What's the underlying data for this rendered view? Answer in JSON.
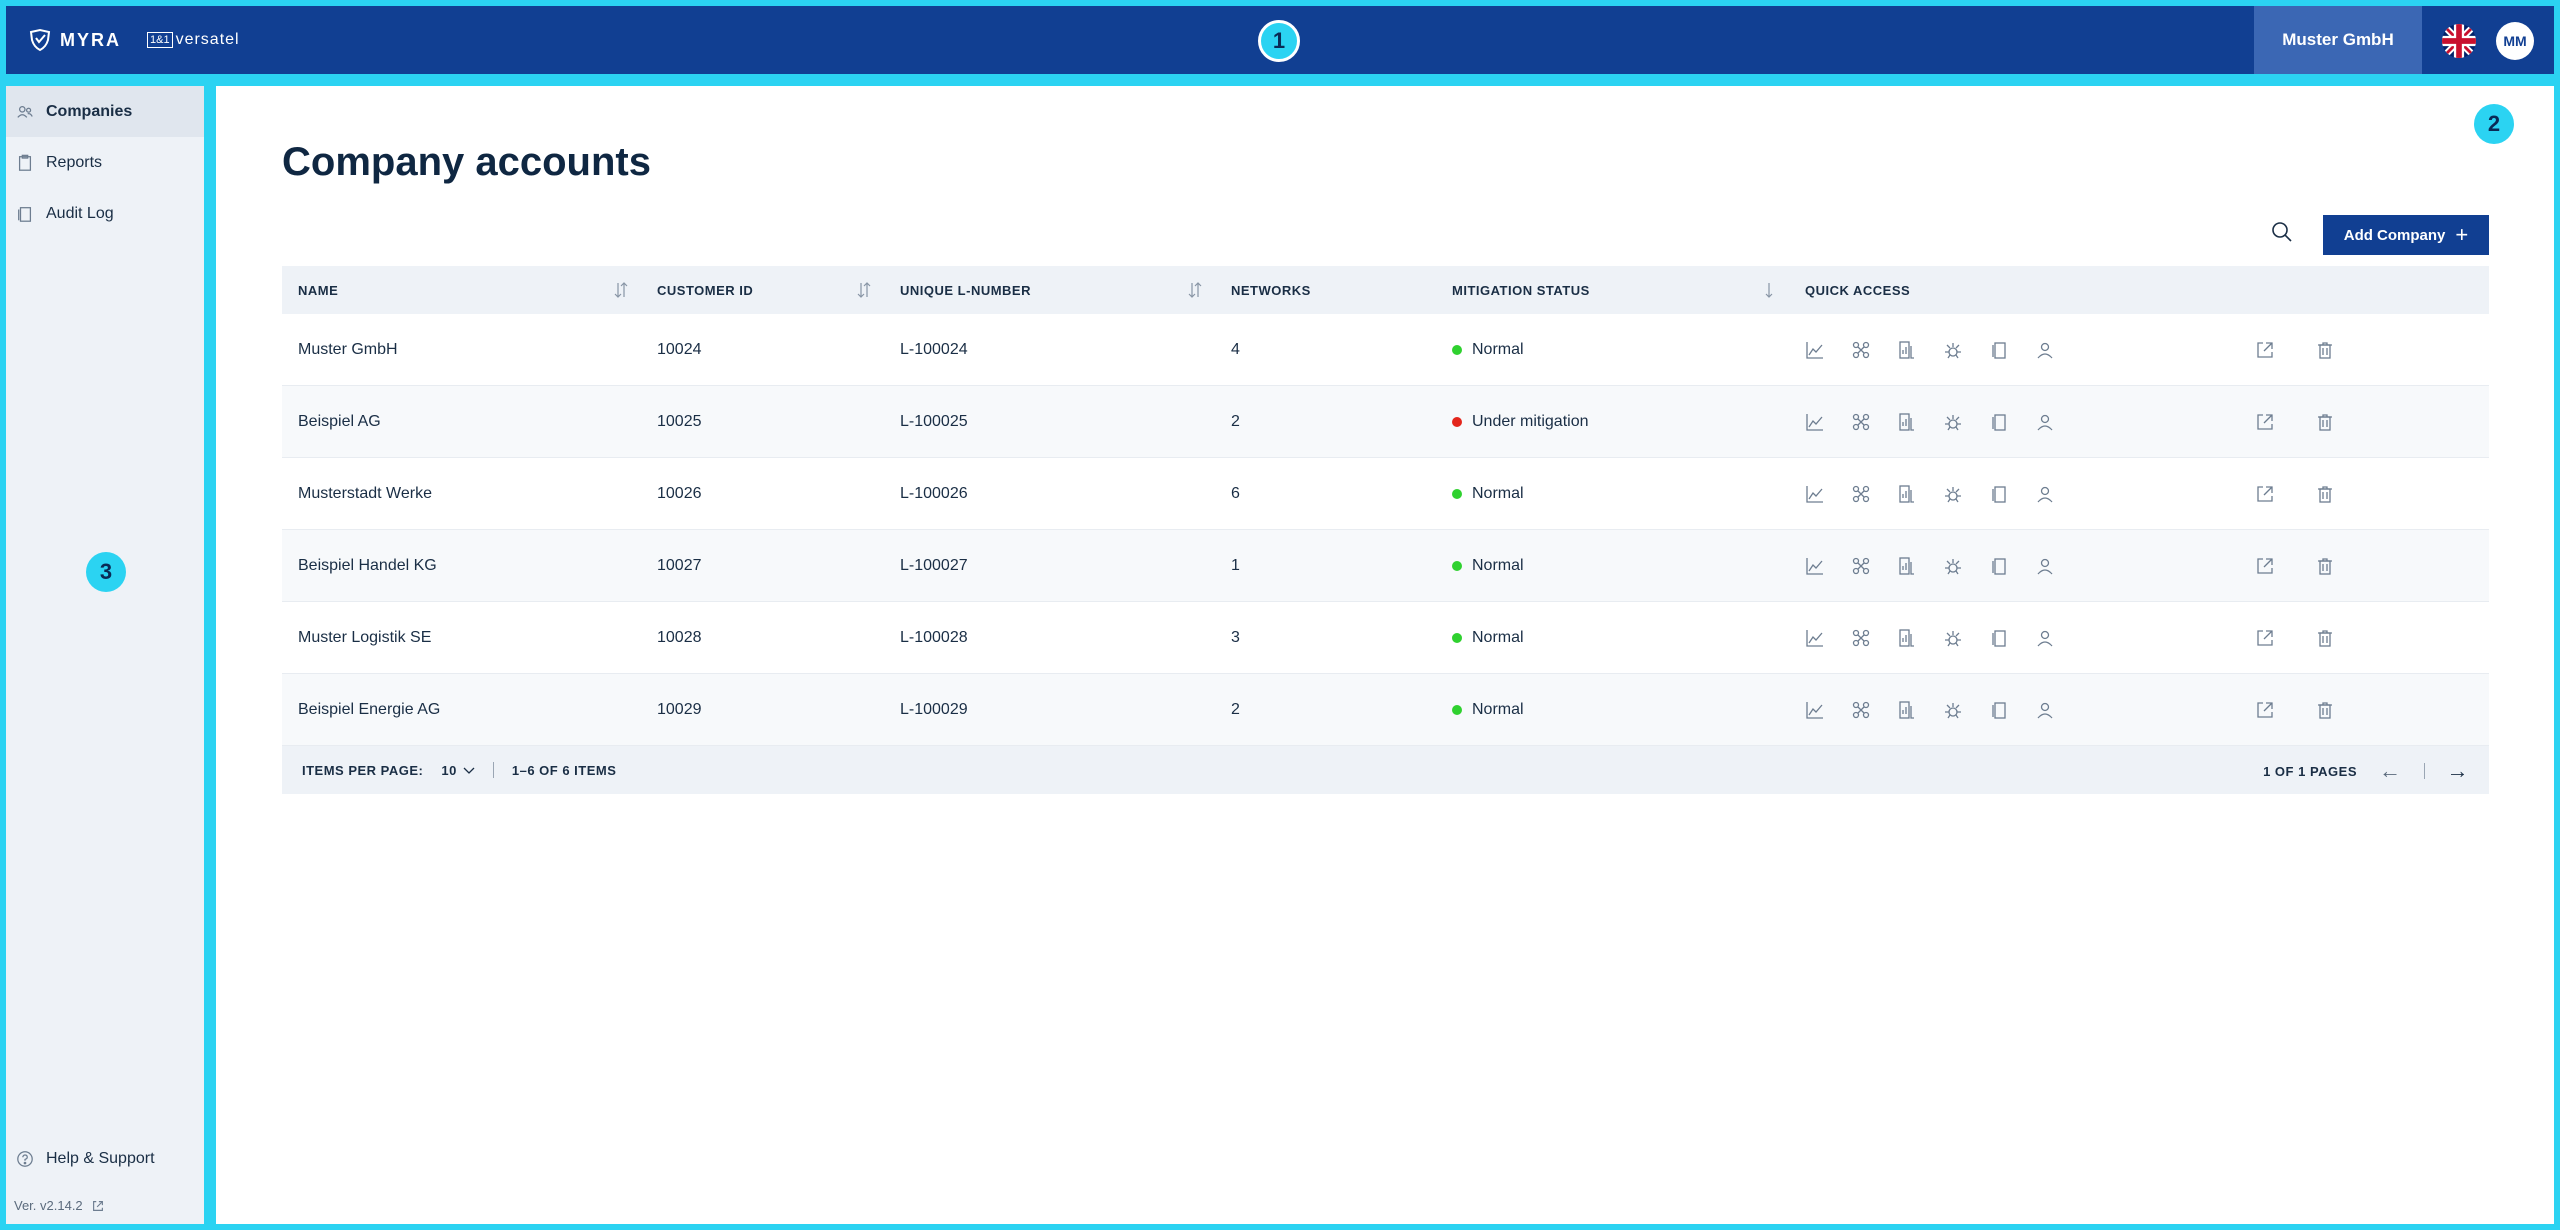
{
  "header": {
    "brand_name": "MYRA",
    "partner_box": "1&1",
    "partner_name": "versatel",
    "badge": "1",
    "company": "Muster GmbH",
    "avatar_initials": "MM"
  },
  "sidebar": {
    "badge": "3",
    "items": [
      {
        "label": "Companies",
        "icon": "users-icon",
        "active": true
      },
      {
        "label": "Reports",
        "icon": "clipboard-icon",
        "active": false
      },
      {
        "label": "Audit Log",
        "icon": "document-icon",
        "active": false
      }
    ],
    "help": "Help & Support",
    "version": "Ver. v2.14.2"
  },
  "main": {
    "badge": "2",
    "title": "Company accounts",
    "add_button": "Add Company",
    "columns": [
      "NAME",
      "CUSTOMER ID",
      "UNIQUE L-NUMBER",
      "NETWORKS",
      "MITIGATION STATUS",
      "QUICK ACCESS"
    ],
    "rows": [
      {
        "name": "Muster GmbH",
        "customer_id": "10024",
        "l_number": "L-100024",
        "networks": "4",
        "status": "Normal",
        "status_color": "#2fd12f"
      },
      {
        "name": "Beispiel AG",
        "customer_id": "10025",
        "l_number": "L-100025",
        "networks": "2",
        "status": "Under mitigation",
        "status_color": "#e3261c"
      },
      {
        "name": "Musterstadt Werke",
        "customer_id": "10026",
        "l_number": "L-100026",
        "networks": "6",
        "status": "Normal",
        "status_color": "#2fd12f"
      },
      {
        "name": "Beispiel Handel KG",
        "customer_id": "10027",
        "l_number": "L-100027",
        "networks": "1",
        "status": "Normal",
        "status_color": "#2fd12f"
      },
      {
        "name": "Muster Logistik SE",
        "customer_id": "10028",
        "l_number": "L-100028",
        "networks": "3",
        "status": "Normal",
        "status_color": "#2fd12f"
      },
      {
        "name": "Beispiel Energie AG",
        "customer_id": "10029",
        "l_number": "L-100029",
        "networks": "2",
        "status": "Normal",
        "status_color": "#2fd12f"
      }
    ],
    "footer": {
      "items_per_page_label": "ITEMS PER PAGE:",
      "items_per_page_value": "10",
      "range": "1–6 OF 6 ITEMS",
      "pages": "1 OF 1 PAGES",
      "prev": "←",
      "next": "→"
    }
  },
  "colors": {
    "header_bg": "#113f92",
    "accent_frame": "#2bd3f2",
    "status_normal": "#2fd12f",
    "status_mitigation": "#e3261c"
  }
}
